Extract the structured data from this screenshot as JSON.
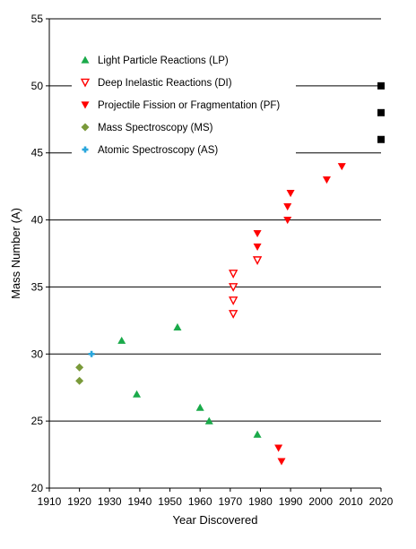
{
  "chart_data": {
    "type": "scatter",
    "xlabel": "Year Discovered",
    "ylabel": "Mass Number (A)",
    "xlim": [
      1910,
      2020
    ],
    "ylim": [
      20,
      55
    ],
    "xticks": [
      "1910",
      "1920",
      "1930",
      "1940",
      "1950",
      "1960",
      "1970",
      "1980",
      "1990",
      "2000",
      "2010",
      "2020"
    ],
    "yticks": [
      "20",
      "25",
      "30",
      "35",
      "40",
      "45",
      "50",
      "55"
    ],
    "grid": "horizontal",
    "legend_position": "top-left",
    "series": [
      {
        "name": "Light Particle Reactions (LP)",
        "marker": "triangle-up",
        "color": "#1aaa4a",
        "points": [
          [
            1934,
            31
          ],
          [
            1939,
            27
          ],
          [
            1952.5,
            32
          ],
          [
            1960,
            26
          ],
          [
            1963,
            25
          ],
          [
            1979,
            24
          ]
        ]
      },
      {
        "name": "Deep Inelastic Reactions (DI)",
        "marker": "triangle-down-open",
        "color": "#ff0000",
        "points": [
          [
            1971,
            36
          ],
          [
            1971,
            35
          ],
          [
            1971,
            34
          ],
          [
            1971,
            33
          ],
          [
            1979,
            37
          ]
        ]
      },
      {
        "name": "Projectile Fission or Fragmentation (PF)",
        "marker": "triangle-down",
        "color": "#ff0000",
        "points": [
          [
            1979,
            39
          ],
          [
            1979,
            38
          ],
          [
            1989,
            41
          ],
          [
            1989,
            40
          ],
          [
            1990,
            42
          ],
          [
            2002,
            43
          ],
          [
            2007,
            44
          ],
          [
            1986,
            23
          ],
          [
            1987,
            22
          ]
        ]
      },
      {
        "name": "Mass Spectroscopy (MS)",
        "marker": "diamond",
        "color": "#7a9a3a",
        "points": [
          [
            1920,
            29
          ],
          [
            1920,
            28
          ]
        ]
      },
      {
        "name": "Atomic Spectroscopy (AS)",
        "marker": "cross",
        "color": "#29a6dc",
        "points": [
          [
            1924,
            30
          ]
        ]
      },
      {
        "marker": "square",
        "color": "#000000",
        "points": [
          [
            2020,
            50
          ],
          [
            2020,
            48
          ],
          [
            2020,
            46
          ]
        ]
      }
    ]
  }
}
